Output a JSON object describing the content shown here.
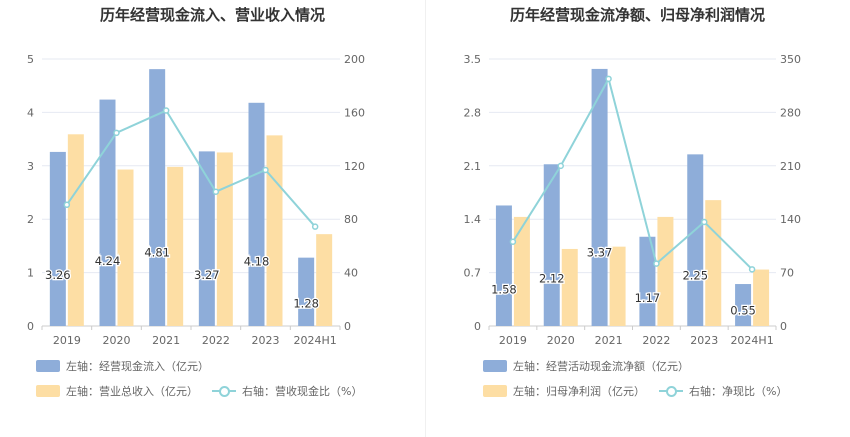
{
  "colors": {
    "bar1": "#8eadd9",
    "bar2": "#fddea4",
    "line": "#8fd3d9",
    "grid": "#e6e9f2",
    "axis_text": "#666666",
    "axis_line": "#cccccc",
    "label_text": "#333333"
  },
  "chart_data": [
    {
      "type": "bar",
      "title": "历年经营现金流入、营业收入情况",
      "categories": [
        "2019",
        "2020",
        "2021",
        "2022",
        "2023",
        "2024H1"
      ],
      "ylim_left": [
        0,
        5
      ],
      "yticks_left": [
        "0",
        "1",
        "2",
        "3",
        "4",
        "5"
      ],
      "ylim_right": [
        0,
        200
      ],
      "yticks_right": [
        "0",
        "40",
        "80",
        "120",
        "160",
        "200"
      ],
      "grid": true,
      "legend_position": "bottom-left",
      "series": [
        {
          "name": "左轴：经营现金流入（亿元）",
          "type": "bar",
          "axis": "left",
          "values": [
            3.26,
            4.24,
            4.81,
            3.27,
            4.18,
            1.28
          ],
          "labels": [
            "3.26",
            "4.24",
            "4.81",
            "3.27",
            "4.18",
            "1.28"
          ]
        },
        {
          "name": "左轴：营业总收入（亿元）",
          "type": "bar",
          "axis": "left",
          "values": [
            3.59,
            2.93,
            2.98,
            3.25,
            3.57,
            1.72
          ]
        },
        {
          "name": "右轴：营收现金比（%）",
          "type": "line",
          "axis": "right",
          "values": [
            90.8,
            144.7,
            161.4,
            100.6,
            116.9,
            74.4
          ]
        }
      ]
    },
    {
      "type": "bar",
      "title": "历年经营现金流净额、归母净利润情况",
      "categories": [
        "2019",
        "2020",
        "2021",
        "2022",
        "2023",
        "2024H1"
      ],
      "ylim_left": [
        0,
        3.5
      ],
      "yticks_left": [
        "0",
        "0.7",
        "1.4",
        "2.1",
        "2.8",
        "3.5"
      ],
      "ylim_right": [
        0,
        350
      ],
      "yticks_right": [
        "0",
        "70",
        "140",
        "210",
        "280",
        "350"
      ],
      "grid": true,
      "legend_position": "bottom-left",
      "series": [
        {
          "name": "左轴：经营活动现金流净额（亿元）",
          "type": "bar",
          "axis": "left",
          "values": [
            1.58,
            2.12,
            3.37,
            1.17,
            2.25,
            0.55
          ],
          "labels": [
            "1.58",
            "2.12",
            "3.37",
            "1.17",
            "2.25",
            "0.55"
          ]
        },
        {
          "name": "左轴：归母净利润（亿元）",
          "type": "bar",
          "axis": "left",
          "values": [
            1.43,
            1.01,
            1.04,
            1.43,
            1.65,
            0.74
          ]
        },
        {
          "name": "右轴：净现比（%）",
          "type": "line",
          "axis": "right",
          "values": [
            110.5,
            209.9,
            324.0,
            81.8,
            136.4,
            74.3
          ]
        }
      ]
    }
  ]
}
